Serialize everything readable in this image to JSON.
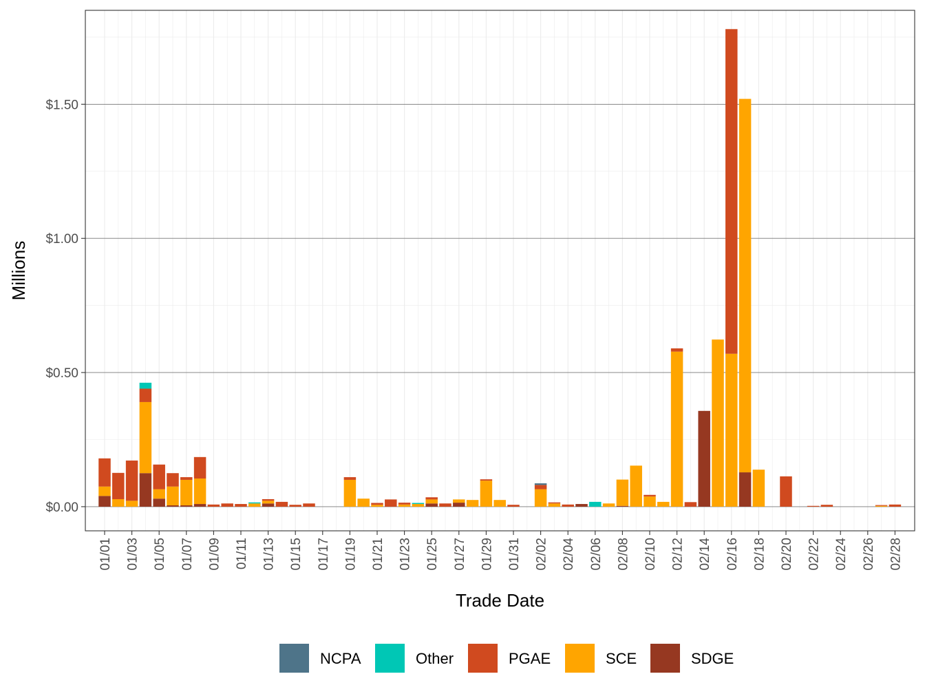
{
  "chart_data": {
    "type": "bar",
    "stacked": true,
    "xlabel": "Trade Date",
    "ylabel": "Millions",
    "ylim": [
      -0.09,
      1.85
    ],
    "y_ticks": [
      0.0,
      0.5,
      1.0,
      1.5
    ],
    "y_tick_labels": [
      "$0.00",
      "$0.50",
      "$1.00",
      "$1.50"
    ],
    "grid": true,
    "legend_position": "bottom",
    "categories": [
      "01/01",
      "01/02",
      "01/03",
      "01/04",
      "01/05",
      "01/06",
      "01/07",
      "01/08",
      "01/09",
      "01/10",
      "01/11",
      "01/12",
      "01/13",
      "01/14",
      "01/15",
      "01/16",
      "01/17",
      "01/18",
      "01/19",
      "01/20",
      "01/21",
      "01/22",
      "01/23",
      "01/24",
      "01/25",
      "01/26",
      "01/27",
      "01/28",
      "01/29",
      "01/30",
      "01/31",
      "02/01",
      "02/02",
      "02/03",
      "02/04",
      "02/05",
      "02/06",
      "02/07",
      "02/08",
      "02/09",
      "02/10",
      "02/11",
      "02/12",
      "02/13",
      "02/14",
      "02/15",
      "02/16",
      "02/17",
      "02/18",
      "02/19",
      "02/20",
      "02/21",
      "02/22",
      "02/23",
      "02/24",
      "02/25",
      "02/26",
      "02/27",
      "02/28"
    ],
    "x_tick_labels": [
      "01/01",
      "01/03",
      "01/05",
      "01/07",
      "01/09",
      "01/11",
      "01/13",
      "01/15",
      "01/17",
      "01/19",
      "01/21",
      "01/23",
      "01/25",
      "01/27",
      "01/29",
      "01/31",
      "02/02",
      "02/04",
      "02/06",
      "02/08",
      "02/10",
      "02/12",
      "02/14",
      "02/16",
      "02/18",
      "02/20",
      "02/22",
      "02/24",
      "02/26",
      "02/28"
    ],
    "series": [
      {
        "name": "SDGE",
        "color": "#963821",
        "values": [
          0.04,
          0,
          0,
          0.125,
          0.03,
          0.005,
          0.005,
          0.01,
          0,
          0,
          0,
          0,
          0.012,
          0,
          0,
          0,
          0,
          0,
          0,
          0,
          0,
          0,
          0,
          0,
          0.012,
          0,
          0.015,
          0,
          0,
          0,
          0,
          0,
          0,
          0,
          0,
          0.01,
          0,
          0,
          0.003,
          0,
          0,
          0,
          0,
          0,
          0.357,
          0,
          0,
          0.128,
          0,
          0,
          0,
          0,
          0,
          0,
          0,
          0,
          0,
          0,
          0
        ]
      },
      {
        "name": "SCE",
        "color": "#FFA500",
        "values": [
          0.035,
          0.028,
          0.022,
          0.265,
          0.035,
          0.07,
          0.095,
          0.095,
          0,
          0,
          0,
          0.012,
          0.01,
          0,
          0,
          0,
          0,
          0,
          0.1,
          0.03,
          0.007,
          0,
          0.008,
          0.01,
          0.015,
          0,
          0.012,
          0.025,
          0.097,
          0.025,
          0,
          0,
          0.065,
          0.012,
          0,
          0,
          0,
          0.012,
          0.098,
          0.153,
          0.038,
          0.018,
          0.578,
          0,
          0,
          0.623,
          0.57,
          1.392,
          0.138,
          0,
          0,
          0,
          0,
          0,
          0,
          0,
          0,
          0.003,
          0
        ]
      },
      {
        "name": "PGAE",
        "color": "#D04A1F",
        "values": [
          0.105,
          0.098,
          0.15,
          0.05,
          0.092,
          0.05,
          0.01,
          0.08,
          0.008,
          0.012,
          0.01,
          0,
          0.006,
          0.018,
          0.007,
          0.012,
          0,
          0,
          0.01,
          0,
          0.007,
          0.027,
          0.007,
          0,
          0.008,
          0.012,
          0,
          0,
          0.005,
          0,
          0.007,
          0,
          0.016,
          0.004,
          0.008,
          0,
          0,
          0,
          0,
          0,
          0.006,
          0,
          0.012,
          0.017,
          0,
          0,
          1.21,
          0,
          0,
          0,
          0.113,
          0,
          0.003,
          0.007,
          0,
          0,
          0,
          0.003,
          0.008
        ]
      },
      {
        "name": "Other",
        "color": "#00C7B5",
        "values": [
          0,
          0,
          0,
          0.022,
          0,
          0,
          0,
          0,
          0,
          0,
          0,
          0.004,
          0,
          0,
          0,
          0,
          0,
          0,
          0,
          0,
          0,
          0,
          0,
          0.004,
          0,
          0,
          0,
          0,
          0,
          0,
          0,
          0,
          0,
          0,
          0,
          0,
          0.018,
          0,
          0,
          0,
          0,
          0,
          0,
          0,
          0,
          0,
          0,
          0,
          0,
          0,
          0,
          0,
          0,
          0,
          0,
          0,
          0,
          0,
          0
        ]
      },
      {
        "name": "NCPA",
        "color": "#4E7489",
        "values": [
          0,
          0,
          0,
          0,
          0,
          0,
          0,
          0,
          0,
          0,
          0,
          0,
          0,
          0,
          0,
          0,
          0,
          0,
          0,
          0,
          0,
          0,
          0,
          0,
          0,
          0,
          0,
          0,
          0,
          0,
          0,
          0,
          0.006,
          0,
          0,
          0,
          0,
          0,
          0,
          0,
          0,
          0,
          0,
          0,
          0,
          0,
          0,
          0,
          0,
          0,
          0,
          0,
          0,
          0,
          0,
          0,
          0,
          0,
          0
        ]
      }
    ],
    "legend": [
      {
        "name": "NCPA",
        "color": "#4E7489"
      },
      {
        "name": "Other",
        "color": "#00C7B5"
      },
      {
        "name": "PGAE",
        "color": "#D04A1F"
      },
      {
        "name": "SCE",
        "color": "#FFA500"
      },
      {
        "name": "SDGE",
        "color": "#963821"
      }
    ]
  }
}
